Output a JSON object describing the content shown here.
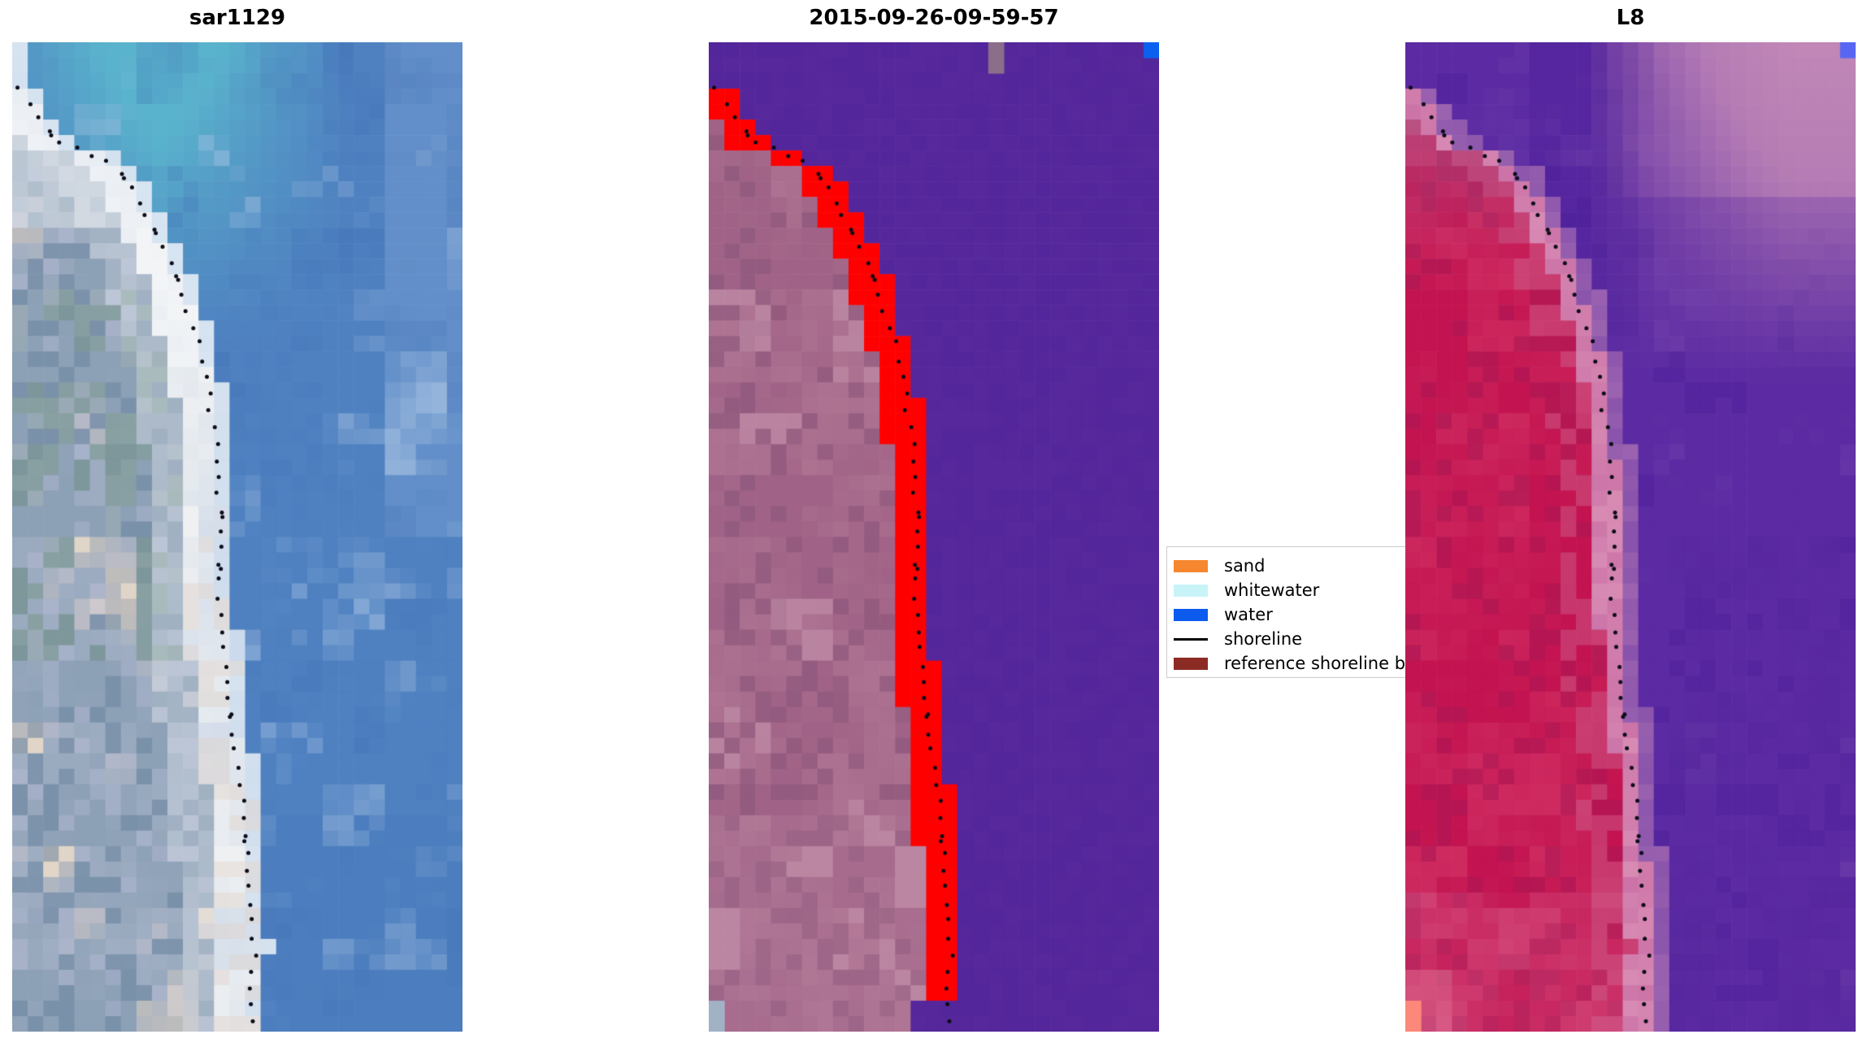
{
  "figure": {
    "background": "#ffffff",
    "description_colors": {
      "sand": "#f6872f",
      "whitewater": "#c8f4f8",
      "water": "#0c5bee",
      "shoreline": "#000000",
      "reference_shoreline_buffer": "#8b2b24"
    }
  },
  "chart_data": {
    "type": "heatmap",
    "subplot_titles": [
      "sar1129",
      "2015-09-26-09-59-57",
      "L8"
    ],
    "grid": {
      "cols": 29,
      "rows": 64
    },
    "panel_size_px": [
      554,
      1217
    ],
    "legend": {
      "position": "center-right, between middle and right panels, clipped by right panel",
      "entries": [
        {
          "label": "sand",
          "type": "patch",
          "color": "#f6872f"
        },
        {
          "label": "whitewater",
          "type": "patch",
          "color": "#c8f4f8"
        },
        {
          "label": "water",
          "type": "patch",
          "color": "#0c5bee"
        },
        {
          "label": "shoreline",
          "type": "line",
          "color": "#000000"
        },
        {
          "label": "reference shoreline bu",
          "type": "patch",
          "color": "#8b2b24"
        }
      ]
    },
    "shoreline": {
      "comment": "normalized (x,y) polyline of detected shoreline, identical in all three panels",
      "path": [
        [
          -0.02,
          0.0
        ],
        [
          0.018,
          0.048
        ],
        [
          0.055,
          0.075
        ],
        [
          0.095,
          0.1
        ],
        [
          0.135,
          0.106
        ],
        [
          0.175,
          0.112
        ],
        [
          0.215,
          0.122
        ],
        [
          0.252,
          0.135
        ],
        [
          0.285,
          0.163
        ],
        [
          0.315,
          0.19
        ],
        [
          0.348,
          0.218
        ],
        [
          0.378,
          0.252
        ],
        [
          0.402,
          0.288
        ],
        [
          0.425,
          0.33
        ],
        [
          0.445,
          0.38
        ],
        [
          0.457,
          0.43
        ],
        [
          0.462,
          0.48
        ],
        [
          0.456,
          0.53
        ],
        [
          0.462,
          0.58
        ],
        [
          0.472,
          0.63
        ],
        [
          0.487,
          0.68
        ],
        [
          0.502,
          0.73
        ],
        [
          0.515,
          0.78
        ],
        [
          0.522,
          0.83
        ],
        [
          0.532,
          0.88
        ],
        [
          0.536,
          0.92
        ],
        [
          0.526,
          0.96
        ],
        [
          0.531,
          1.0
        ]
      ],
      "dot_color": "#0c0c18",
      "dot_radius": 2.5,
      "spacing_px": 21,
      "seed": 7
    },
    "panels": [
      {
        "title": "sar1129",
        "kind": "rgb",
        "seed": 11,
        "colors": {
          "ocean": "#4f81c1",
          "teal": "#5ab3cd",
          "ocean_light": "#a9c4e3",
          "ocean_dark": "#3f6fb4",
          "ocean_corner": "#8fb0dc",
          "surf": "#eef0f2",
          "surf_shadow": "#c9d6e6",
          "surf_cream": "#e6d7cd",
          "surf_blue": "#c3d8ee",
          "surf_bright": "#f6f8fa",
          "land_base": "#8ca0b6",
          "land_light": "#a5b2c6",
          "land_green": "#7d9a8e",
          "land_tan": "#d8c8b2",
          "land_cream": "#ecdfce",
          "land_dark": "#6e87a2",
          "land_lavender": "#b3b9d4",
          "land_fringe": "#e9edf1"
        },
        "markers": []
      },
      {
        "title": "2015-09-26-09-59-57",
        "kind": "classified",
        "seed": 23,
        "colors": {
          "water": "#54269b",
          "land": "#a06387",
          "land2": "#b27795",
          "land_dark": "#8a5579",
          "land_light": "#c08ea8",
          "edge": "#c088a4",
          "edge2": "#b77d9a"
        },
        "notch": {
          "x": 0.437,
          "y": 0.967
        },
        "markers": [
          {
            "c": 18,
            "r": 0,
            "h": 2,
            "color": "#8a6e8a"
          },
          {
            "c": 28,
            "r": 0,
            "h": 1,
            "color": "#0b60ef"
          },
          {
            "c": 0,
            "r": 62,
            "h": 2,
            "color": "#a2b2c5"
          }
        ]
      },
      {
        "title": "L8",
        "kind": "falsecolor",
        "seed": 37,
        "colors": {
          "water": "#5c2ba3",
          "water_dark": "#4c1f99",
          "water_light": "#7445ad",
          "cloud": "#a76fb2",
          "cloud_pink": "#c98fb9",
          "band": "#9c64b0",
          "strip": "#cc74a8",
          "strip2": "#d88cb4",
          "land": "#c31350",
          "land2": "#ce2a60",
          "land_dark": "#a81a56",
          "land_edge": "#cb5a88",
          "land_top": "#a85f92",
          "land_bottom": "#d4628f",
          "land_corner": "#e07a9b"
        },
        "markers": [
          {
            "c": 28,
            "r": 0,
            "h": 1,
            "color": "#5767f3"
          },
          {
            "c": 0,
            "r": 62,
            "h": 2,
            "color": "#fb8878"
          }
        ]
      }
    ]
  }
}
